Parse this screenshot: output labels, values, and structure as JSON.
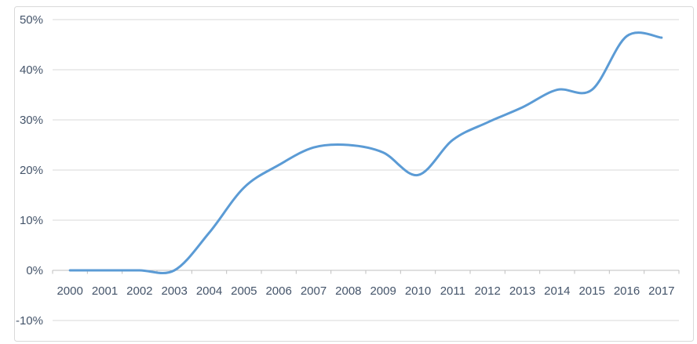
{
  "chart_data": {
    "type": "line",
    "title": "",
    "x_categories": [
      "2000",
      "2001",
      "2002",
      "2003",
      "2004",
      "2005",
      "2006",
      "2007",
      "2008",
      "2009",
      "2010",
      "2011",
      "2012",
      "2013",
      "2014",
      "2015",
      "2016",
      "2017"
    ],
    "series": [
      {
        "values": [
          0,
          0,
          0,
          0,
          7.5,
          16.5,
          21,
          24.5,
          25,
          23.5,
          19,
          26,
          29.5,
          32.5,
          36,
          36,
          46.7,
          46.4
        ]
      }
    ],
    "value_unit": "%",
    "ylim": [
      -10,
      50
    ],
    "ytick_step": 10,
    "ytick_labels": [
      "50%",
      "40%",
      "30%",
      "20%",
      "10%",
      "0%",
      "-10%"
    ],
    "xlabel": "",
    "ylabel": "",
    "grid": true,
    "smooth": true,
    "legend_position": "none"
  },
  "colors": {
    "line": "#5B9BD5",
    "gridline": "#D9D9D9",
    "axis_line": "#BFBFBF",
    "tick_mark": "#BFBFBF",
    "tick_label": "#44546A",
    "chart_border": "#D9D9D9",
    "background": "#FFFFFF"
  }
}
